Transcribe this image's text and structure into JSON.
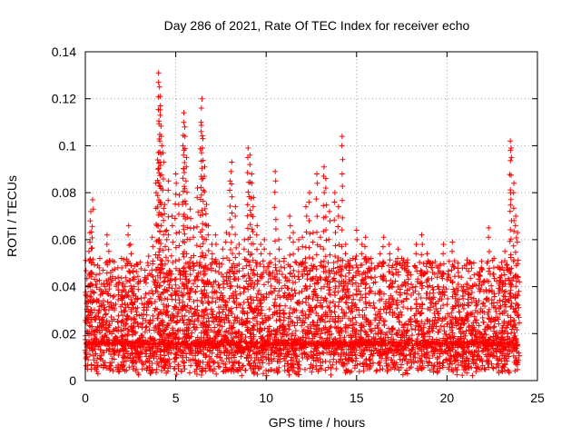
{
  "chart_data": {
    "type": "scatter",
    "title": "Day 286 of 2021, Rate Of TEC Index for receiver echo",
    "xlabel": "GPS time / hours",
    "ylabel": "ROTI / TECUs",
    "xlim": [
      0,
      25
    ],
    "ylim": [
      0,
      0.14
    ],
    "x_ticks": [
      "0",
      "5",
      "10",
      "15",
      "20",
      "25"
    ],
    "x_tick_values": [
      0,
      5,
      10,
      15,
      20,
      25
    ],
    "y_ticks": [
      "0",
      "0.02",
      "0.04",
      "0.06",
      "0.08",
      "0.1",
      "0.12",
      "0.14"
    ],
    "y_tick_values": [
      0,
      0.02,
      0.04,
      0.06,
      0.08,
      0.1,
      0.12,
      0.14
    ],
    "grid": true,
    "marker": "plus",
    "color": "#ff0000",
    "series": [
      {
        "points": [
          [
            0.05,
            0.012
          ],
          [
            0.1,
            0.025
          ],
          [
            0.15,
            0.04
          ],
          [
            0.2,
            0.055
          ],
          [
            0.25,
            0.063
          ],
          [
            0.3,
            0.072
          ],
          [
            0.35,
            0.05
          ],
          [
            0.4,
            0.077
          ],
          [
            0.5,
            0.03
          ],
          [
            0.6,
            0.045
          ],
          [
            0.7,
            0.034
          ],
          [
            0.8,
            0.052
          ],
          [
            0.9,
            0.041
          ],
          [
            1.0,
            0.038
          ],
          [
            1.1,
            0.028
          ],
          [
            1.2,
            0.062
          ],
          [
            1.3,
            0.055
          ],
          [
            1.4,
            0.046
          ],
          [
            1.5,
            0.051
          ],
          [
            1.6,
            0.036
          ],
          [
            1.8,
            0.048
          ],
          [
            2.0,
            0.052
          ],
          [
            2.2,
            0.04
          ],
          [
            2.4,
            0.066
          ],
          [
            2.5,
            0.058
          ],
          [
            2.7,
            0.044
          ],
          [
            2.9,
            0.035
          ],
          [
            3.1,
            0.028
          ],
          [
            3.3,
            0.047
          ],
          [
            3.5,
            0.053
          ],
          [
            3.7,
            0.061
          ],
          [
            3.9,
            0.084
          ],
          [
            4.0,
            0.094
          ],
          [
            4.05,
            0.131
          ],
          [
            4.1,
            0.125
          ],
          [
            4.15,
            0.117
          ],
          [
            4.2,
            0.104
          ],
          [
            4.3,
            0.097
          ],
          [
            4.4,
            0.075
          ],
          [
            4.5,
            0.064
          ],
          [
            4.6,
            0.085
          ],
          [
            4.8,
            0.07
          ],
          [
            5.0,
            0.088
          ],
          [
            5.2,
            0.079
          ],
          [
            5.4,
            0.1
          ],
          [
            5.45,
            0.114
          ],
          [
            5.5,
            0.108
          ],
          [
            5.6,
            0.095
          ],
          [
            5.8,
            0.073
          ],
          [
            6.0,
            0.065
          ],
          [
            6.2,
            0.082
          ],
          [
            6.4,
            0.11
          ],
          [
            6.45,
            0.12
          ],
          [
            6.5,
            0.103
          ],
          [
            6.6,
            0.091
          ],
          [
            6.7,
            0.075
          ],
          [
            6.8,
            0.066
          ],
          [
            7.0,
            0.058
          ],
          [
            7.2,
            0.062
          ],
          [
            7.4,
            0.05
          ],
          [
            7.6,
            0.056
          ],
          [
            7.8,
            0.063
          ],
          [
            8.0,
            0.085
          ],
          [
            8.1,
            0.093
          ],
          [
            8.3,
            0.074
          ],
          [
            8.5,
            0.058
          ],
          [
            8.8,
            0.06
          ],
          [
            9.0,
            0.099
          ],
          [
            9.1,
            0.096
          ],
          [
            9.2,
            0.088
          ],
          [
            9.3,
            0.078
          ],
          [
            9.5,
            0.066
          ],
          [
            9.7,
            0.058
          ],
          [
            9.9,
            0.06
          ],
          [
            10.2,
            0.054
          ],
          [
            10.5,
            0.089
          ],
          [
            10.7,
            0.06
          ],
          [
            11.0,
            0.052
          ],
          [
            11.3,
            0.07
          ],
          [
            11.5,
            0.063
          ],
          [
            11.8,
            0.06
          ],
          [
            12.0,
            0.061
          ],
          [
            12.2,
            0.074
          ],
          [
            12.4,
            0.08
          ],
          [
            12.6,
            0.063
          ],
          [
            12.8,
            0.088
          ],
          [
            13.0,
            0.061
          ],
          [
            13.2,
            0.091
          ],
          [
            13.3,
            0.086
          ],
          [
            13.5,
            0.072
          ],
          [
            13.8,
            0.08
          ],
          [
            14.0,
            0.074
          ],
          [
            14.2,
            0.104
          ],
          [
            14.4,
            0.058
          ],
          [
            14.6,
            0.047
          ],
          [
            14.8,
            0.052
          ],
          [
            15.0,
            0.064
          ],
          [
            15.3,
            0.058
          ],
          [
            15.5,
            0.061
          ],
          [
            15.8,
            0.052
          ],
          [
            16.0,
            0.048
          ],
          [
            16.3,
            0.054
          ],
          [
            16.5,
            0.061
          ],
          [
            16.8,
            0.058
          ],
          [
            17.0,
            0.049
          ],
          [
            17.3,
            0.056
          ],
          [
            17.5,
            0.052
          ],
          [
            17.8,
            0.05
          ],
          [
            18.0,
            0.045
          ],
          [
            18.3,
            0.058
          ],
          [
            18.6,
            0.062
          ],
          [
            18.9,
            0.054
          ],
          [
            19.2,
            0.05
          ],
          [
            19.5,
            0.048
          ],
          [
            19.8,
            0.058
          ],
          [
            20.0,
            0.043
          ],
          [
            20.3,
            0.059
          ],
          [
            20.6,
            0.05
          ],
          [
            20.9,
            0.04
          ],
          [
            21.2,
            0.037
          ],
          [
            21.5,
            0.045
          ],
          [
            21.8,
            0.038
          ],
          [
            22.0,
            0.042
          ],
          [
            22.3,
            0.065
          ],
          [
            22.6,
            0.052
          ],
          [
            22.9,
            0.048
          ],
          [
            23.2,
            0.055
          ],
          [
            23.5,
            0.102
          ],
          [
            23.55,
            0.099
          ],
          [
            23.7,
            0.084
          ],
          [
            23.8,
            0.07
          ],
          [
            23.9,
            0.063
          ],
          [
            24.0,
            0.042
          ]
        ]
      }
    ],
    "noise_band": {
      "base": 0.016,
      "spread": 0.035,
      "min": 0.002
    }
  }
}
